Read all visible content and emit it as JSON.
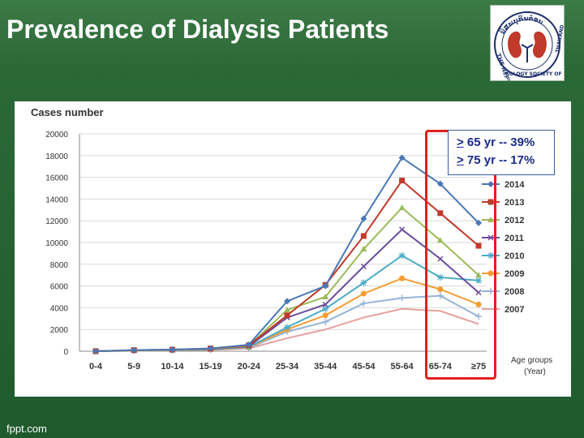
{
  "slide": {
    "title": "Prevalence of Dialysis Patients",
    "footer": "fppt.com"
  },
  "logo": {
    "arc_text": "ນິສພບຸກິນຕໍ່ອນ",
    "side_text_left": "THE NEPH",
    "side_text_right": "ROLOGY SOCIETY OF",
    "side_text_right2": "THAILAND"
  },
  "callout": {
    "line1_symbol": ">",
    "line1_rest": " 65 yr -- 39%",
    "line2_symbol": ">",
    "line2_rest": " 75 yr -- 17%"
  },
  "colors": {
    "background": "#2a6634",
    "highlight": "#e02020",
    "callout_text": "#1a2a8c"
  },
  "chart_data": {
    "type": "line",
    "ylabel": "Cases number",
    "xlabel": "Age groups\n(Year)",
    "xlabel_line1": "Age groups",
    "xlabel_line2": "(Year)",
    "ylim": [
      0,
      20000
    ],
    "yticks": [
      "0",
      "2000",
      "4000",
      "6000",
      "8000",
      "10000",
      "12000",
      "14000",
      "16000",
      "18000",
      "20000"
    ],
    "categories": [
      "0-4",
      "5-9",
      "10-14",
      "15-19",
      "20-24",
      "25-34",
      "35-44",
      "45-54",
      "55-64",
      "65-74",
      "≥75"
    ],
    "grid": true,
    "legend_position": "right",
    "series": [
      {
        "name": "2014",
        "color": "#4a78b5",
        "marker": "diamond",
        "values": [
          0,
          100,
          150,
          250,
          600,
          4600,
          6000,
          12200,
          17800,
          15400,
          11800
        ]
      },
      {
        "name": "2013",
        "color": "#c0392b",
        "marker": "square",
        "values": [
          0,
          100,
          150,
          250,
          550,
          3300,
          6100,
          10600,
          15700,
          12700,
          9700
        ]
      },
      {
        "name": "2012",
        "color": "#9bbb59",
        "marker": "triangle",
        "values": [
          0,
          80,
          120,
          220,
          500,
          3800,
          5000,
          9400,
          13200,
          10200,
          7000
        ]
      },
      {
        "name": "2011",
        "color": "#6a4c9c",
        "marker": "x",
        "values": [
          0,
          80,
          120,
          200,
          450,
          3100,
          4300,
          7800,
          11200,
          8500,
          5400
        ]
      },
      {
        "name": "2010",
        "color": "#4bacc6",
        "marker": "star",
        "values": [
          0,
          70,
          100,
          180,
          400,
          2200,
          3900,
          6300,
          8800,
          6800,
          6500
        ]
      },
      {
        "name": "2009",
        "color": "#f39c34",
        "marker": "circle",
        "values": [
          0,
          60,
          100,
          160,
          350,
          2000,
          3300,
          5300,
          6700,
          5700,
          4300
        ]
      },
      {
        "name": "2008",
        "color": "#95b3d7",
        "marker": "plus",
        "values": [
          0,
          50,
          80,
          150,
          300,
          1800,
          2700,
          4400,
          4900,
          5100,
          3200
        ]
      },
      {
        "name": "2007",
        "color": "#e6a0a0",
        "marker": "none",
        "values": [
          0,
          40,
          70,
          120,
          250,
          1200,
          2000,
          3100,
          3900,
          3700,
          2500
        ]
      }
    ]
  }
}
